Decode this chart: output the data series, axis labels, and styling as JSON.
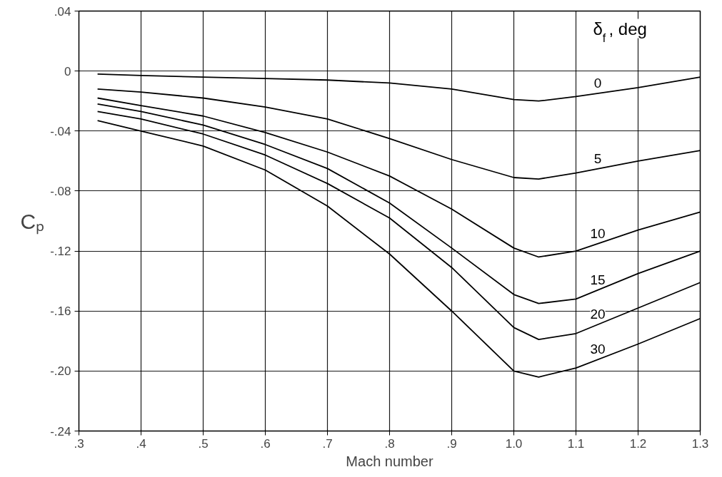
{
  "chart_data": {
    "type": "line",
    "xlabel": "Mach number",
    "ylabel": "Cₚ",
    "legend_title": "δ$_{f}$ , deg",
    "x": [
      0.33,
      0.4,
      0.5,
      0.6,
      0.7,
      0.8,
      0.9,
      1.0,
      1.04,
      1.1,
      1.2,
      1.3
    ],
    "series": [
      {
        "name": "0",
        "color": "#000000",
        "values": [
          -0.002,
          -0.003,
          -0.004,
          -0.005,
          -0.006,
          -0.008,
          -0.012,
          -0.019,
          -0.02,
          -0.017,
          -0.011,
          -0.004
        ]
      },
      {
        "name": "5",
        "color": "#000000",
        "values": [
          -0.012,
          -0.014,
          -0.018,
          -0.024,
          -0.032,
          -0.045,
          -0.059,
          -0.071,
          -0.072,
          -0.068,
          -0.06,
          -0.053
        ]
      },
      {
        "name": "10",
        "color": "#000000",
        "values": [
          -0.018,
          -0.023,
          -0.03,
          -0.041,
          -0.054,
          -0.07,
          -0.092,
          -0.118,
          -0.124,
          -0.12,
          -0.106,
          -0.094
        ]
      },
      {
        "name": "15",
        "color": "#000000",
        "values": [
          -0.022,
          -0.027,
          -0.036,
          -0.049,
          -0.065,
          -0.088,
          -0.118,
          -0.149,
          -0.155,
          -0.152,
          -0.135,
          -0.12
        ]
      },
      {
        "name": "20",
        "color": "#000000",
        "values": [
          -0.027,
          -0.032,
          -0.042,
          -0.056,
          -0.075,
          -0.098,
          -0.131,
          -0.171,
          -0.179,
          -0.175,
          -0.158,
          -0.141
        ]
      },
      {
        "name": "30",
        "color": "#000000",
        "values": [
          -0.033,
          -0.04,
          -0.05,
          -0.066,
          -0.09,
          -0.122,
          -0.16,
          -0.2,
          -0.204,
          -0.198,
          -0.182,
          -0.165
        ]
      }
    ],
    "xlim": [
      0.3,
      1.3
    ],
    "xticks": [
      {
        "value": 0.3,
        "label": ".3"
      },
      {
        "value": 0.4,
        "label": ".4"
      },
      {
        "value": 0.5,
        "label": ".5"
      },
      {
        "value": 0.6,
        "label": ".6"
      },
      {
        "value": 0.7,
        "label": ".7"
      },
      {
        "value": 0.8,
        "label": ".8"
      },
      {
        "value": 0.9,
        "label": ".9"
      },
      {
        "value": 1.0,
        "label": "1.0"
      },
      {
        "value": 1.1,
        "label": "1.1"
      },
      {
        "value": 1.2,
        "label": "1.2"
      },
      {
        "value": 1.3,
        "label": "1.3"
      }
    ],
    "ylim": [
      -0.24,
      0.04
    ],
    "yticks": [
      {
        "value": 0.04,
        "label": ".04"
      },
      0,
      {
        "value": -0.04,
        "label": "-.04"
      },
      {
        "value": -0.08,
        "label": "-.08"
      },
      {
        "value": -0.12,
        "label": "-.12"
      },
      {
        "value": -0.16,
        "label": "-.16"
      },
      {
        "value": -0.2,
        "label": "-.20"
      },
      {
        "value": -0.24,
        "label": "-.24"
      }
    ],
    "grid": true,
    "legend": false,
    "marker": "none",
    "line_style": "solid"
  }
}
